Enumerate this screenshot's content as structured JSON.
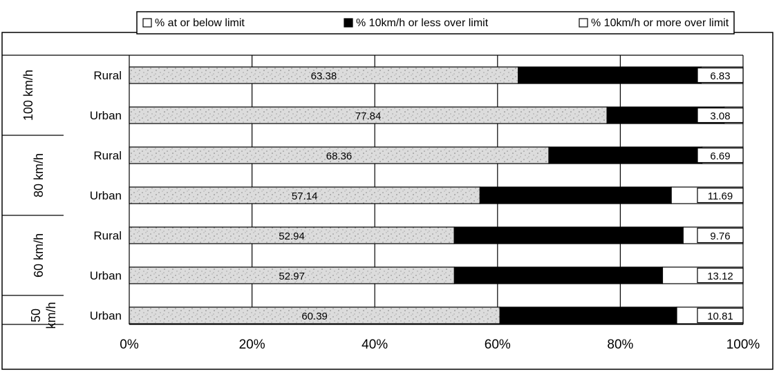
{
  "chart_data": {
    "type": "bar",
    "stacked": true,
    "orientation": "horizontal",
    "legend_position": "top",
    "grid": true,
    "xlim": [
      0,
      100
    ],
    "x_ticks": [
      "0%",
      "20%",
      "40%",
      "60%",
      "80%",
      "100%"
    ],
    "groups": [
      {
        "label": "100 km/h",
        "rows": [
          "Rural",
          "Urban"
        ]
      },
      {
        "label": "80 km/h",
        "rows": [
          "Rural",
          "Urban"
        ]
      },
      {
        "label": "60 km/h",
        "rows": [
          "Rural",
          "Urban"
        ]
      },
      {
        "label": "50 km/h",
        "rows": [
          "Urban"
        ]
      }
    ],
    "series": [
      {
        "name": "% at or below limit",
        "color": "#d9d9d9",
        "values": [
          63.38,
          77.84,
          68.36,
          57.14,
          52.94,
          52.97,
          60.39
        ],
        "labels": [
          "63.38",
          "77.84",
          "68.36",
          "57.14",
          "52.94",
          "52.97",
          "60.39"
        ]
      },
      {
        "name": "% 10km/h or less over limit",
        "color": "#000000",
        "values": [
          29.79,
          19.08,
          24.95,
          31.17,
          37.3,
          33.91,
          28.8
        ],
        "labels": []
      },
      {
        "name": "% 10km/h or more over limit",
        "color": "#ffffff",
        "values": [
          6.83,
          3.08,
          6.69,
          11.69,
          9.76,
          13.12,
          10.81
        ],
        "labels": [
          "6.83",
          "3.08",
          "6.69",
          "11.69",
          "9.76",
          "13.12",
          "10.81"
        ]
      }
    ]
  }
}
